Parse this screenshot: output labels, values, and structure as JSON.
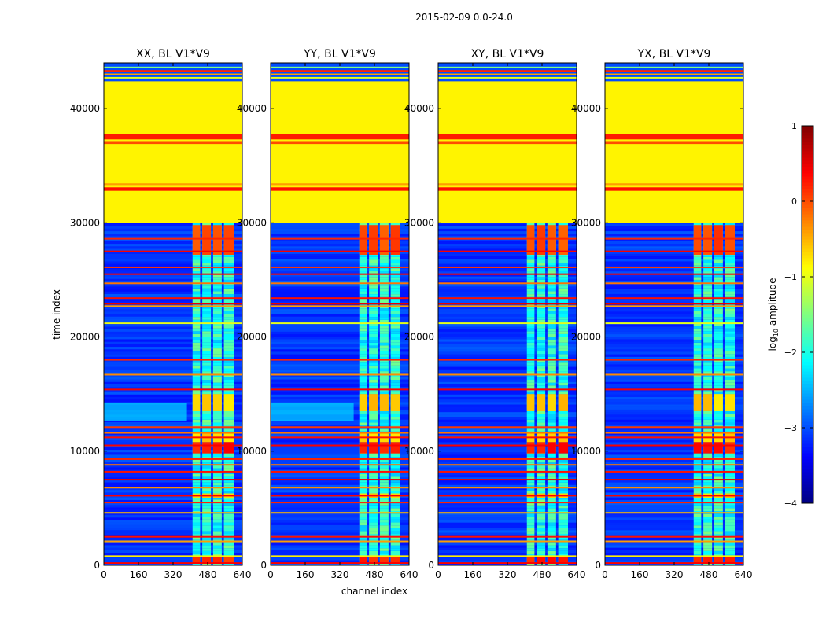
{
  "figure": {
    "suptitle": "2015-02-09 0.0-24.0",
    "xlabel": "channel index",
    "ylabel": "time index"
  },
  "colorbar": {
    "label": "log₁₀ amplitude",
    "label_base": "log",
    "label_sub": "10",
    "label_tail": " amplitude",
    "vmin": -4,
    "vmax": 1,
    "ticks": [
      1,
      0,
      -1,
      -2,
      -3,
      -4
    ],
    "tick_labels": [
      "1",
      "0",
      "−1",
      "−2",
      "−3",
      "−4"
    ],
    "colormap": "jet"
  },
  "chart_data": {
    "type": "heatmap",
    "panels": [
      {
        "title": "XX, BL V1*V9",
        "variant": "xx"
      },
      {
        "title": "YY, BL V1*V9",
        "variant": "yy"
      },
      {
        "title": "XY, BL V1*V9",
        "variant": "xy"
      },
      {
        "title": "YX, BL V1*V9",
        "variant": "yx"
      }
    ],
    "xlim": [
      0,
      640
    ],
    "ylim": [
      0,
      44000
    ],
    "xticks": [
      0,
      160,
      320,
      480,
      640
    ],
    "xtick_labels": [
      "0",
      "160",
      "320",
      "480",
      "640"
    ],
    "yticks": [
      0,
      10000,
      20000,
      30000,
      40000
    ],
    "ytick_labels": [
      "0",
      "10000",
      "20000",
      "30000",
      "40000"
    ],
    "approx_regions": [
      {
        "time_range": [
          30000,
          42400
        ],
        "log_amp": -0.8,
        "note": "saturated flag block"
      },
      {
        "time_range": [
          0,
          30000
        ],
        "log_amp": -3.1,
        "note": "noise background"
      },
      {
        "channel_range": [
          410,
          600
        ],
        "log_amp": -1.8,
        "note": "signal channels"
      }
    ],
    "approx_bright_bands": [
      {
        "time_range": [
          37200,
          37800
        ],
        "log_amp": 0.2
      },
      {
        "time_range": [
          27200,
          29800
        ],
        "log_amp": 0.0,
        "channel_range": [
          410,
          600
        ]
      },
      {
        "time_range": [
          9800,
          10800
        ],
        "log_amp": 0.2,
        "channel_range": [
          410,
          600
        ]
      },
      {
        "time_range": [
          13500,
          15000
        ],
        "log_amp": -0.6,
        "channel_range": [
          410,
          600
        ]
      }
    ]
  }
}
